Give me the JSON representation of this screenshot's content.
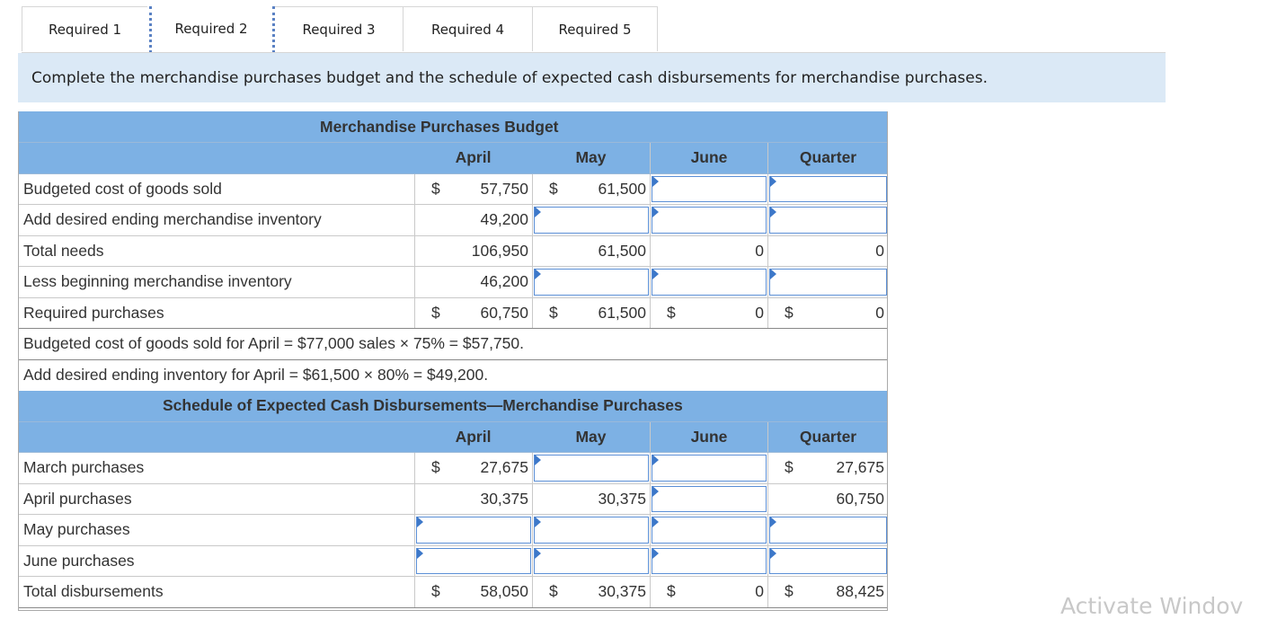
{
  "tabs": [
    "Required 1",
    "Required 2",
    "Required 3",
    "Required 4",
    "Required 5"
  ],
  "instructions": "Complete the merchandise purchases budget and the schedule of expected cash disbursements for merchandise purchases.",
  "budget": {
    "title": "Merchandise Purchases Budget",
    "columns": [
      "April",
      "May",
      "June",
      "Quarter"
    ],
    "rows": [
      {
        "label": "Budgeted cost of goods sold",
        "april_dollar": "$",
        "april": "57,750",
        "may_dollar": "$",
        "may": "61,500"
      },
      {
        "label": "Add desired ending merchandise inventory",
        "april": "49,200"
      },
      {
        "label": "Total needs",
        "april": "106,950",
        "may": "61,500",
        "june": "0",
        "quarter": "0"
      },
      {
        "label": "Less beginning merchandise inventory",
        "april": "46,200"
      },
      {
        "label": "Required purchases",
        "april_dollar": "$",
        "april": "60,750",
        "may_dollar": "$",
        "may": "61,500",
        "june_dollar": "$",
        "june": "0",
        "quarter_dollar": "$",
        "quarter": "0"
      }
    ],
    "notes": [
      "Budgeted cost of goods sold for April = $77,000 sales × 75% = $57,750.",
      "Add desired ending inventory for April = $61,500 × 80% = $49,200."
    ]
  },
  "schedule": {
    "title": "Schedule of Expected Cash Disbursements—Merchandise Purchases",
    "columns": [
      "April",
      "May",
      "June",
      "Quarter"
    ],
    "rows": [
      {
        "label": "March purchases",
        "april_dollar": "$",
        "april": "27,675",
        "quarter_dollar": "$",
        "quarter": "27,675"
      },
      {
        "label": "April purchases",
        "april": "30,375",
        "may": "30,375",
        "quarter": "60,750"
      },
      {
        "label": "May purchases"
      },
      {
        "label": "June purchases"
      },
      {
        "label": "Total disbursements",
        "april_dollar": "$",
        "april": "58,050",
        "may_dollar": "$",
        "may": "30,375",
        "june_dollar": "$",
        "june": "0",
        "quarter_dollar": "$",
        "quarter": "88,425"
      }
    ]
  },
  "watermark": "Activate Windov"
}
